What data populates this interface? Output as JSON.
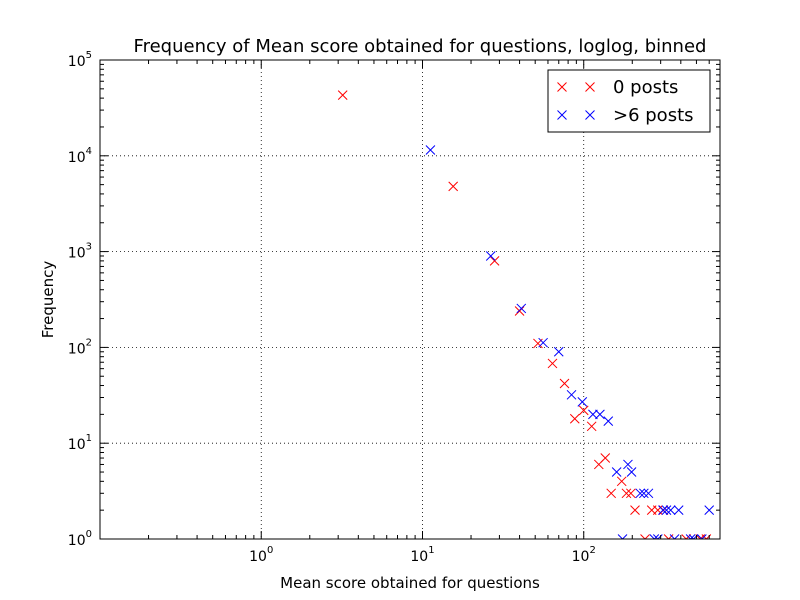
{
  "chart_data": {
    "type": "scatter",
    "title": "Frequency of Mean score obtained for questions, loglog, binned",
    "xlabel": "Mean score obtained for questions",
    "ylabel": "Frequency",
    "xscale": "log",
    "yscale": "log",
    "xlim": [
      0.1,
      700
    ],
    "ylim": [
      1,
      100000
    ],
    "grid": true,
    "legend_position": "top-right",
    "x_ticks": [
      {
        "value": 1,
        "base": "10",
        "exp": "0"
      },
      {
        "value": 10,
        "base": "10",
        "exp": "1"
      },
      {
        "value": 100,
        "base": "10",
        "exp": "2"
      }
    ],
    "y_ticks": [
      {
        "value": 1,
        "base": "10",
        "exp": "0"
      },
      {
        "value": 10,
        "base": "10",
        "exp": "1"
      },
      {
        "value": 100,
        "base": "10",
        "exp": "2"
      },
      {
        "value": 1000,
        "base": "10",
        "exp": "3"
      },
      {
        "value": 10000,
        "base": "10",
        "exp": "4"
      },
      {
        "value": 100000,
        "base": "10",
        "exp": "5"
      }
    ],
    "series": [
      {
        "name": "0 posts",
        "color": "#ff0000",
        "marker": "x",
        "points": [
          [
            3.2,
            43000
          ],
          [
            15.5,
            4800
          ],
          [
            28,
            800
          ],
          [
            40,
            240
          ],
          [
            52,
            110
          ],
          [
            64,
            68
          ],
          [
            76,
            42
          ],
          [
            88,
            18
          ],
          [
            100,
            22
          ],
          [
            112,
            15
          ],
          [
            124,
            6
          ],
          [
            136,
            7
          ],
          [
            148,
            3
          ],
          [
            172,
            4
          ],
          [
            184,
            3
          ],
          [
            196,
            3
          ],
          [
            208,
            2
          ],
          [
            240,
            1
          ],
          [
            264,
            2
          ],
          [
            288,
            2
          ],
          [
            312,
            2
          ],
          [
            336,
            1
          ],
          [
            432,
            1
          ],
          [
            528,
            1
          ],
          [
            576,
            1
          ]
        ]
      },
      {
        "name": ">6 posts",
        "color": "#0000ff",
        "marker": "x",
        "points": [
          [
            11.2,
            11500
          ],
          [
            26.5,
            900
          ],
          [
            41,
            255
          ],
          [
            56,
            112
          ],
          [
            70,
            90
          ],
          [
            84,
            32
          ],
          [
            98,
            27
          ],
          [
            114,
            20
          ],
          [
            126,
            20
          ],
          [
            142,
            17
          ],
          [
            160,
            5
          ],
          [
            174,
            1
          ],
          [
            188,
            6
          ],
          [
            198,
            5
          ],
          [
            224,
            3
          ],
          [
            236,
            3
          ],
          [
            252,
            3
          ],
          [
            274,
            1
          ],
          [
            288,
            1
          ],
          [
            310,
            2
          ],
          [
            326,
            2
          ],
          [
            346,
            2
          ],
          [
            366,
            1
          ],
          [
            388,
            2
          ],
          [
            460,
            1
          ],
          [
            480,
            1
          ],
          [
            540,
            1
          ],
          [
            600,
            2
          ]
        ]
      }
    ]
  }
}
